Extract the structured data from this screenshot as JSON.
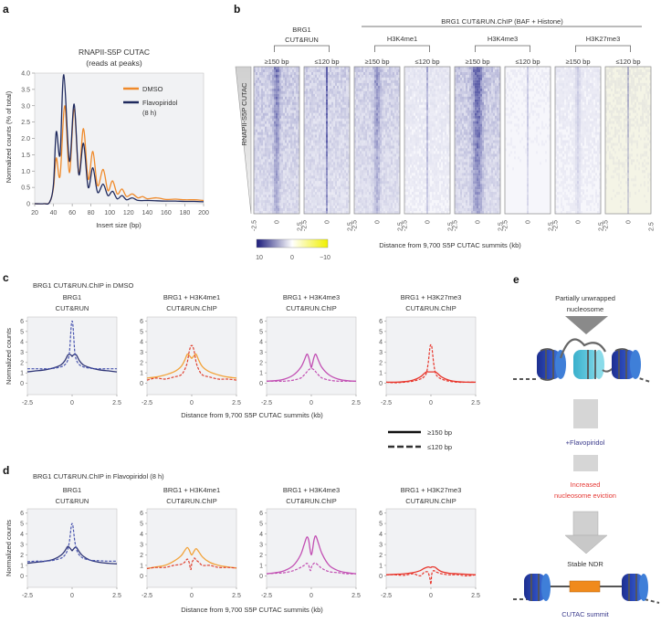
{
  "panel_labels": {
    "a": "a",
    "b": "b",
    "c": "c",
    "d": "d",
    "e": "e"
  },
  "colors": {
    "dmso": "#f08a2a",
    "flavopiridol": "#1f2a5e",
    "brg1": "#2e3576",
    "brg1_dashed": "#4a56b0",
    "h3k4me1_solid": "#f2a33a",
    "h3k4me1_dashed": "#e0402e",
    "h3k4me3": "#c24fb3",
    "h3k27me3": "#e8352b",
    "heatmap_high": "#2b2e8e",
    "heatmap_low": "#e8e830",
    "flavo_text": "#3b3b8c",
    "eviction_text": "#e53935",
    "nucleosome_dark": "#2d47b0",
    "nucleosome_light": "#5cc6dc",
    "cutac_summit": "#f08a1c"
  },
  "chart_data": [
    {
      "id": "a",
      "type": "line",
      "title": "RNAPII-S5P CUTAC",
      "subtitle": "(reads at peaks)",
      "xlabel": "Insert size (bp)",
      "ylabel": "Normalized counts (% of total)",
      "xlim": [
        20,
        200
      ],
      "ylim": [
        0,
        4.0
      ],
      "xticks": [
        "20",
        "40",
        "60",
        "80",
        "100",
        "120",
        "140",
        "160",
        "180",
        "200"
      ],
      "yticks": [
        "0",
        "0.5",
        "1.0",
        "1.5",
        "2.0",
        "2.5",
        "3.0",
        "3.5",
        "4.0"
      ],
      "legend": "top-right",
      "series": [
        {
          "name": "DMSO",
          "color_key": "dmso",
          "x": [
            20,
            30,
            36,
            40,
            43,
            47,
            52,
            57,
            62,
            67,
            72,
            77,
            82,
            87,
            93,
            98,
            103,
            108,
            113,
            118,
            124,
            130,
            135,
            140,
            150,
            160,
            170,
            180,
            190,
            200
          ],
          "y": [
            0,
            0,
            0.05,
            0.5,
            1.4,
            0.85,
            3.0,
            0.95,
            2.9,
            0.9,
            2.3,
            0.75,
            1.6,
            0.55,
            1.05,
            0.4,
            0.7,
            0.3,
            0.45,
            0.22,
            0.3,
            0.18,
            0.22,
            0.15,
            0.18,
            0.13,
            0.14,
            0.12,
            0.12,
            0.1
          ]
        },
        {
          "name": "Flavopiridol",
          "name_line2": "(8 h)",
          "color_key": "flavopiridol",
          "x": [
            20,
            30,
            36,
            40,
            43,
            47,
            51,
            57,
            62,
            67,
            72,
            77,
            82,
            87,
            93,
            98,
            103,
            108,
            113,
            118,
            124,
            130,
            140,
            150,
            160,
            170,
            180,
            190,
            200
          ],
          "y": [
            0,
            0,
            0.05,
            0.6,
            2.2,
            1.5,
            3.95,
            1.3,
            3.05,
            0.9,
            1.85,
            0.5,
            1.1,
            0.35,
            0.6,
            0.25,
            0.38,
            0.15,
            0.25,
            0.12,
            0.18,
            0.1,
            0.1,
            0.09,
            0.08,
            0.08,
            0.07,
            0.07,
            0.06
          ]
        }
      ]
    },
    {
      "id": "b",
      "type": "heatmap",
      "row_label": "RNAPII-S5P CUTAC",
      "group_title": "BRG1 CUT&RUN.ChIP (BAF + Histone)",
      "groups": [
        {
          "line1": "BRG1",
          "line2": "CUT&RUN"
        },
        {
          "line1": "H3K4me1",
          "line2": ""
        },
        {
          "line1": "H3K4me3",
          "line2": ""
        },
        {
          "line1": "H3K27me3",
          "line2": ""
        }
      ],
      "columns": [
        {
          "label": "≥150 bp",
          "background": 0.3,
          "peak": 0.55,
          "peak_width_kb": 0.45
        },
        {
          "label": "≤120 bp",
          "background": 0.25,
          "peak": 0.8,
          "peak_width_kb": 0.12
        },
        {
          "label": "≥150 bp",
          "background": 0.25,
          "peak": 0.45,
          "peak_width_kb": 0.45
        },
        {
          "label": "≤120 bp",
          "background": 0.1,
          "peak": 0.4,
          "peak_width_kb": 0.1
        },
        {
          "label": "≥150 bp",
          "background": 0.3,
          "peak": 0.75,
          "peak_width_kb": 0.75
        },
        {
          "label": "≤120 bp",
          "background": 0.05,
          "peak": 0.25,
          "peak_width_kb": 0.1
        },
        {
          "label": "≥150 bp",
          "background": 0.08,
          "peak": 0.2,
          "peak_width_kb": 0.35
        },
        {
          "label": "≤120 bp",
          "background": 0.06,
          "peak": 0.35,
          "peak_width_kb": 0.1
        }
      ],
      "xticks": [
        "-2.5",
        "0",
        "2.5"
      ],
      "xlabel": "Distance from 9,700 S5P CUTAC summits (kb)",
      "colorbar": {
        "labels": [
          "10",
          "0",
          "−10"
        ],
        "range": [
          10,
          -10
        ]
      }
    }
  ],
  "profiles": {
    "x": [
      -2.5,
      -2,
      -1.5,
      -1,
      -0.6,
      -0.4,
      -0.25,
      -0.15,
      -0.05,
      0,
      0.05,
      0.15,
      0.25,
      0.4,
      0.6,
      1,
      1.5,
      2,
      2.5
    ],
    "xlim": [
      -2.5,
      2.5
    ],
    "ylim": [
      -1.1,
      6.4
    ],
    "xticks": [
      "-2.5",
      "0",
      "2.5"
    ],
    "yticks": [
      "0",
      "1",
      "2",
      "3",
      "4",
      "5",
      "6"
    ],
    "ylabel": "Normalized counts",
    "xlabel": "Distance from 9,700 S5P CUTAC summits (kb)",
    "legend": {
      "solid": "≥150 bp",
      "dashed": "≤120 bp"
    },
    "panels": [
      {
        "id": "c",
        "subtitle": "BRG1 CUT&RUN.ChIP in DMSO",
        "plots": [
          {
            "line1": "BRG1",
            "line2": "CUT&RUN",
            "solid_color": "brg1",
            "dashed_color": "brg1_dashed",
            "solid": [
              1.1,
              1.2,
              1.3,
              1.5,
              1.8,
              2.2,
              2.7,
              2.8,
              2.7,
              2.6,
              2.7,
              2.8,
              2.7,
              2.2,
              1.8,
              1.5,
              1.3,
              1.2,
              1.1
            ],
            "dashed": [
              1.4,
              1.4,
              1.4,
              1.45,
              1.6,
              1.8,
              2.2,
              3.0,
              5.5,
              6.0,
              5.5,
              3.0,
              2.2,
              1.8,
              1.6,
              1.45,
              1.4,
              1.4,
              1.4
            ]
          },
          {
            "line1": "BRG1 + H3K4me1",
            "line2": "CUT&RUN.ChIP",
            "solid_color": "h3k4me1_solid",
            "dashed_color": "h3k4me1_dashed",
            "solid": [
              0.5,
              0.6,
              0.8,
              1.1,
              1.6,
              2.2,
              2.8,
              2.7,
              2.5,
              2.4,
              2.5,
              2.7,
              2.8,
              2.2,
              1.6,
              1.1,
              0.8,
              0.6,
              0.5
            ],
            "dashed": [
              0.3,
              0.5,
              0.4,
              0.6,
              0.8,
              1.3,
              2.0,
              3.0,
              3.6,
              3.6,
              3.6,
              3.0,
              2.0,
              1.3,
              0.8,
              0.6,
              0.4,
              0.4,
              0.3
            ]
          },
          {
            "line1": "BRG1 + H3K4me3",
            "line2": "CUT&RUN.ChIP",
            "solid_color": "h3k4me3",
            "dashed_color": "h3k4me3",
            "solid": [
              0.2,
              0.25,
              0.4,
              0.8,
              1.5,
              2.2,
              2.8,
              2.5,
              1.8,
              1.5,
              1.8,
              2.5,
              2.8,
              2.2,
              1.5,
              0.8,
              0.4,
              0.25,
              0.2
            ],
            "dashed": [
              0.2,
              0.2,
              0.2,
              0.3,
              0.5,
              0.8,
              1.1,
              1.3,
              1.4,
              1.4,
              1.4,
              1.3,
              1.1,
              0.8,
              0.5,
              0.3,
              0.2,
              0.2,
              0.2
            ]
          },
          {
            "line1": "BRG1 + H3K27me3",
            "line2": "CUT&RUN.ChIP",
            "solid_color": "h3k27me3",
            "dashed_color": "h3k27me3",
            "solid": [
              0.1,
              0.1,
              0.15,
              0.3,
              0.6,
              0.9,
              1.1,
              1.1,
              1.1,
              1.1,
              1.1,
              1.1,
              1.1,
              0.9,
              0.6,
              0.3,
              0.15,
              0.1,
              0.1
            ],
            "dashed": [
              0.1,
              0.05,
              0.1,
              0.2,
              0.4,
              0.6,
              1.0,
              2.0,
              3.5,
              3.7,
              3.5,
              2.0,
              1.0,
              0.6,
              0.4,
              0.2,
              0.1,
              0.1,
              0.1
            ]
          }
        ]
      },
      {
        "id": "d",
        "subtitle": "BRG1 CUT&RUN.ChIP in Flavopiridol (8 h)",
        "plots": [
          {
            "line1": "BRG1",
            "line2": "CUT&RUN",
            "solid_color": "brg1",
            "dashed_color": "brg1_dashed",
            "solid": [
              1.2,
              1.3,
              1.4,
              1.6,
              2.0,
              2.4,
              2.8,
              2.7,
              2.5,
              2.4,
              2.5,
              2.7,
              2.7,
              2.3,
              1.9,
              1.5,
              1.3,
              1.2,
              1.15
            ],
            "dashed": [
              1.35,
              1.4,
              1.4,
              1.5,
              1.7,
              2.0,
              2.5,
              3.3,
              4.7,
              5.0,
              4.7,
              3.3,
              2.5,
              2.0,
              1.7,
              1.5,
              1.45,
              1.4,
              1.4
            ]
          },
          {
            "line1": "BRG1 + H3K4me1",
            "line2": "CUT&RUN.ChIP",
            "solid_color": "h3k4me1_solid",
            "dashed_color": "h3k4me1_dashed",
            "solid": [
              0.7,
              0.85,
              1.0,
              1.4,
              1.9,
              2.4,
              2.7,
              2.5,
              2.1,
              2.0,
              2.1,
              2.4,
              2.6,
              2.3,
              1.8,
              1.3,
              1.0,
              0.85,
              0.75
            ],
            "dashed": [
              0.7,
              0.8,
              0.8,
              1.0,
              1.1,
              1.3,
              1.6,
              1.3,
              0.6,
              1.2,
              1.4,
              1.7,
              1.5,
              1.3,
              1.0,
              1.0,
              0.8,
              0.8,
              0.75
            ]
          },
          {
            "line1": "BRG1 + H3K4me3",
            "line2": "CUT&RUN.ChIP",
            "solid_color": "h3k4me3",
            "dashed_color": "h3k4me3",
            "solid": [
              0.2,
              0.3,
              0.5,
              1.0,
              2.0,
              3.0,
              3.7,
              3.4,
              2.3,
              2.0,
              2.3,
              3.4,
              3.8,
              3.1,
              2.1,
              1.0,
              0.5,
              0.3,
              0.2
            ],
            "dashed": [
              0.2,
              0.25,
              0.3,
              0.5,
              0.8,
              1.0,
              1.2,
              1.0,
              0.5,
              0.8,
              1.0,
              1.2,
              1.2,
              1.0,
              0.7,
              0.4,
              0.3,
              0.2,
              0.2
            ]
          },
          {
            "line1": "BRG1 + H3K27me3",
            "line2": "CUT&RUN.ChIP",
            "solid_color": "h3k27me3",
            "dashed_color": "h3k27me3",
            "solid": [
              0.1,
              0.15,
              0.2,
              0.3,
              0.5,
              0.7,
              0.8,
              0.85,
              0.8,
              0.8,
              0.85,
              0.85,
              0.8,
              0.6,
              0.4,
              0.25,
              0.2,
              0.15,
              0.1
            ],
            "dashed": [
              0.1,
              0.1,
              0.05,
              0.2,
              0.0,
              0.3,
              0.4,
              0.3,
              -0.3,
              -0.8,
              0.2,
              0.5,
              0.4,
              0.3,
              0.2,
              0.1,
              0.1,
              0.0,
              0.1
            ]
          }
        ]
      }
    ]
  },
  "model": {
    "top_label_1": "Partially unwrapped",
    "top_label_2": "nucleosome",
    "treatment": "+Flavopiridol",
    "effect_1": "Increased",
    "effect_2": "nucleosome eviction",
    "result": "Stable NDR",
    "summit_label": "CUTAC summit"
  }
}
